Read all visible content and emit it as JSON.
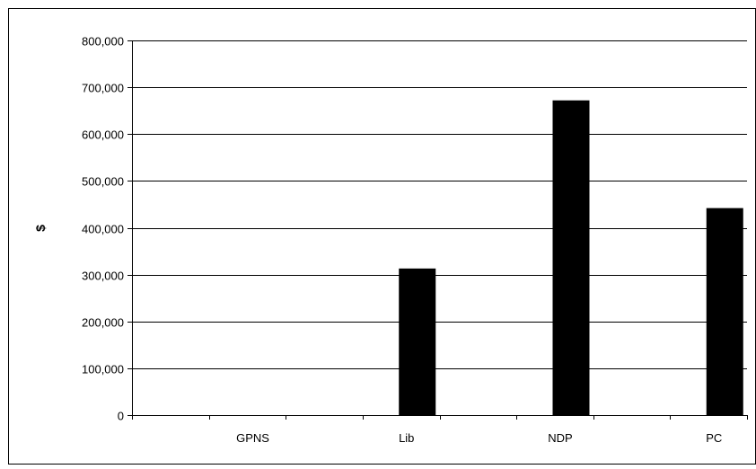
{
  "chart_data": {
    "type": "bar",
    "title": "",
    "xlabel": "",
    "ylabel": "$",
    "categories": [
      "GPNS",
      "Lib",
      "NDP",
      "PC"
    ],
    "values": [
      0,
      313000,
      672000,
      442000
    ],
    "ylim": [
      0,
      800000
    ],
    "yticks": [
      "0",
      "100,000",
      "200,000",
      "300,000",
      "400,000",
      "500,000",
      "600,000",
      "700,000",
      "800,000"
    ],
    "grid": true,
    "legend": "none",
    "bar_color": "#000000",
    "gridline_color": "#000000"
  }
}
